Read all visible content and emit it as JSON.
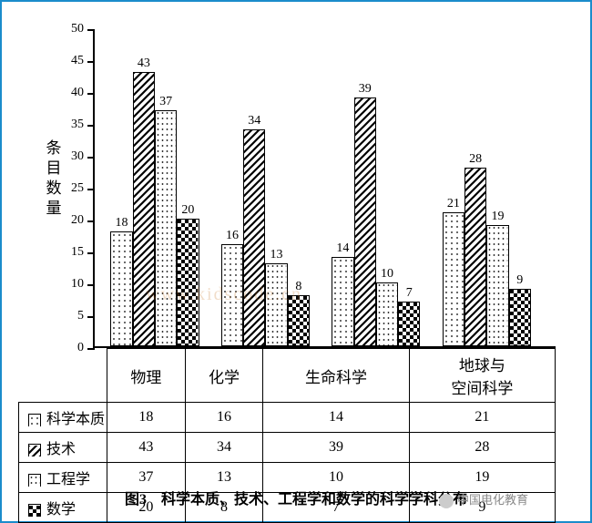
{
  "chart": {
    "type": "bar",
    "yaxis_title": "条目数量",
    "ylim": [
      0,
      50
    ],
    "ytick_step": 5,
    "yticks": [
      0,
      5,
      10,
      15,
      20,
      25,
      30,
      35,
      40,
      45,
      50
    ],
    "categories": [
      "物理",
      "化学",
      "生命科学",
      "地球与\n空间科学"
    ],
    "series": [
      {
        "name": "科学本质",
        "pattern": "dots-sm",
        "values": [
          18,
          16,
          14,
          21
        ]
      },
      {
        "name": "技术",
        "pattern": "diag",
        "values": [
          43,
          34,
          39,
          28
        ]
      },
      {
        "name": "工程学",
        "pattern": "dots-v",
        "values": [
          37,
          13,
          10,
          19
        ]
      },
      {
        "name": "数学",
        "pattern": "checker",
        "values": [
          20,
          8,
          7,
          9
        ]
      }
    ],
    "bar_border_color": "#000000",
    "axis_color": "#000000",
    "background_color": "#ffffff",
    "label_fontsize": 14,
    "tick_fontsize": 14,
    "category_fontsize": 17,
    "table_fontsize": 16
  },
  "patterns": {
    "dots-sm": {
      "bg": "#ffffff",
      "desc": "small light dots"
    },
    "diag": {
      "bg": "#ffffff",
      "desc": "black diagonal hatch"
    },
    "dots-v": {
      "bg": "#ffffff",
      "desc": "vertical dotted lines"
    },
    "checker": {
      "bg": "#ffffff",
      "desc": "black checkerboard"
    }
  },
  "caption": "图3　科学本质、技术、工程学和数学的科学学科分布",
  "frame_border_color": "#1b8ccb",
  "watermark_text": "中国电化教育",
  "faint_watermark": "www.kidscode.cn"
}
